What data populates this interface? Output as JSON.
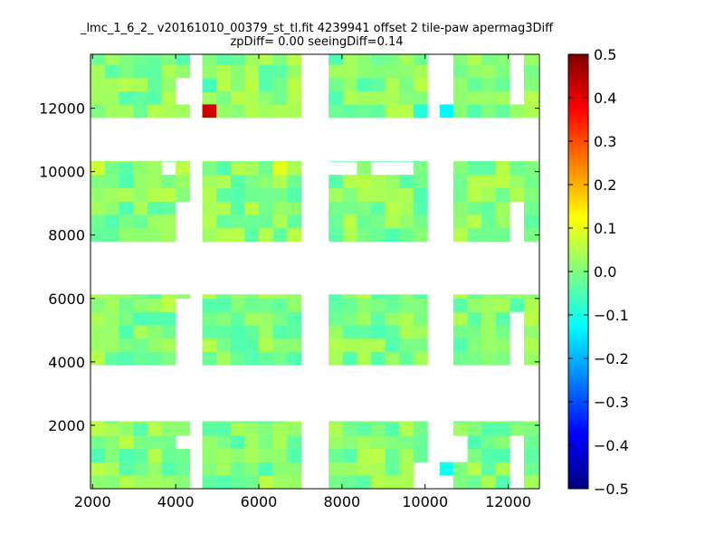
{
  "title_line1": "_lmc_1_6_2_ v20161010_00379_st_tl.fit 4239941 offset 2 tile-paw apermag3Diff",
  "title_line2": "zpDiff= 0.00 seeingDiff=0.14",
  "chart_data": {
    "type": "heatmap",
    "title": "_lmc_1_6_2_ v20161010_00379_st_tl.fit 4239941 offset 2 tile-paw apermag3Diff",
    "subtitle": "zpDiff= 0.00 seeingDiff=0.14",
    "xlabel": "",
    "ylabel": "",
    "xlim": [
      1950,
      12750
    ],
    "ylim": [
      0,
      13700
    ],
    "xticks": [
      2000,
      4000,
      6000,
      8000,
      10000,
      12000
    ],
    "yticks": [
      2000,
      4000,
      6000,
      8000,
      10000,
      12000
    ],
    "grid": false,
    "colorbar": {
      "cmap": "jet",
      "vmin": -0.5,
      "vmax": 0.5,
      "ticks": [
        -0.5,
        -0.4,
        -0.3,
        -0.2,
        -0.1,
        0.0,
        0.1,
        0.2,
        0.3,
        0.4,
        0.5
      ],
      "tick_labels": [
        "−0.5",
        "−0.4",
        "−0.3",
        "−0.2",
        "−0.1",
        "0.0",
        "0.1",
        "0.2",
        "0.3",
        "0.4",
        "0.5"
      ]
    },
    "cell_width": 340,
    "cell_height": 420,
    "columns_x_start": [
      1960,
      2300,
      2640,
      2980,
      3320,
      3660,
      4000,
      4640,
      4980,
      5320,
      5660,
      6000,
      6340,
      6680,
      7680,
      8020,
      8360,
      8700,
      9040,
      9380,
      9720,
      10680,
      11020,
      11360,
      11700,
      12040,
      12380
    ],
    "row_groups": [
      {
        "y_start": 0,
        "y_end": 2130
      },
      {
        "y_start": 3900,
        "y_end": 6130
      },
      {
        "y_start": 7800,
        "y_end": 10330
      },
      {
        "y_start": 11700,
        "y_end": 13700
      }
    ],
    "missing_regions": [
      {
        "x": [
          3990,
          4310
        ],
        "y": [
          1260,
          1680
        ]
      },
      {
        "x": [
          3990,
          4310
        ],
        "y": [
          4020,
          6130
        ]
      },
      {
        "x": [
          3990,
          4310
        ],
        "y": [
          7800,
          9000
        ]
      },
      {
        "x": [
          3990,
          4310
        ],
        "y": [
          12100,
          12900
        ]
      },
      {
        "x": [
          9700,
          10400
        ],
        "y": [
          0,
          1000
        ]
      },
      {
        "x": [
          10700,
          11000
        ],
        "y": [
          1000,
          1680
        ]
      },
      {
        "x": [
          12000,
          12400
        ],
        "y": [
          0,
          1680
        ]
      },
      {
        "x": [
          12000,
          12400
        ],
        "y": [
          4020,
          5500
        ]
      },
      {
        "x": [
          12000,
          12400
        ],
        "y": [
          7800,
          9000
        ]
      },
      {
        "x": [
          12000,
          12400
        ],
        "y": [
          12300,
          13700
        ]
      },
      {
        "x": [
          3660,
          4000
        ],
        "y": [
          9900,
          10330
        ]
      },
      {
        "x": [
          7680,
          8360
        ],
        "y": [
          9900,
          10330
        ]
      },
      {
        "x": [
          8700,
          9720
        ],
        "y": [
          9900,
          10330
        ]
      }
    ],
    "highlight_cells": [
      {
        "x": 4640,
        "y": 11700,
        "value": 0.42
      },
      {
        "x": 10350,
        "y": 11700,
        "value": -0.13
      },
      {
        "x": 10350,
        "y": 420,
        "value": -0.11
      },
      {
        "x": 6340,
        "y": 9900,
        "value": 0.1
      },
      {
        "x": 1960,
        "y": 9900,
        "value": 0.08
      },
      {
        "x": 4640,
        "y": 12500,
        "value": -0.06
      },
      {
        "x": 9720,
        "y": 11700,
        "value": -0.09
      }
    ],
    "typical_value_range": [
      -0.05,
      0.06
    ]
  }
}
